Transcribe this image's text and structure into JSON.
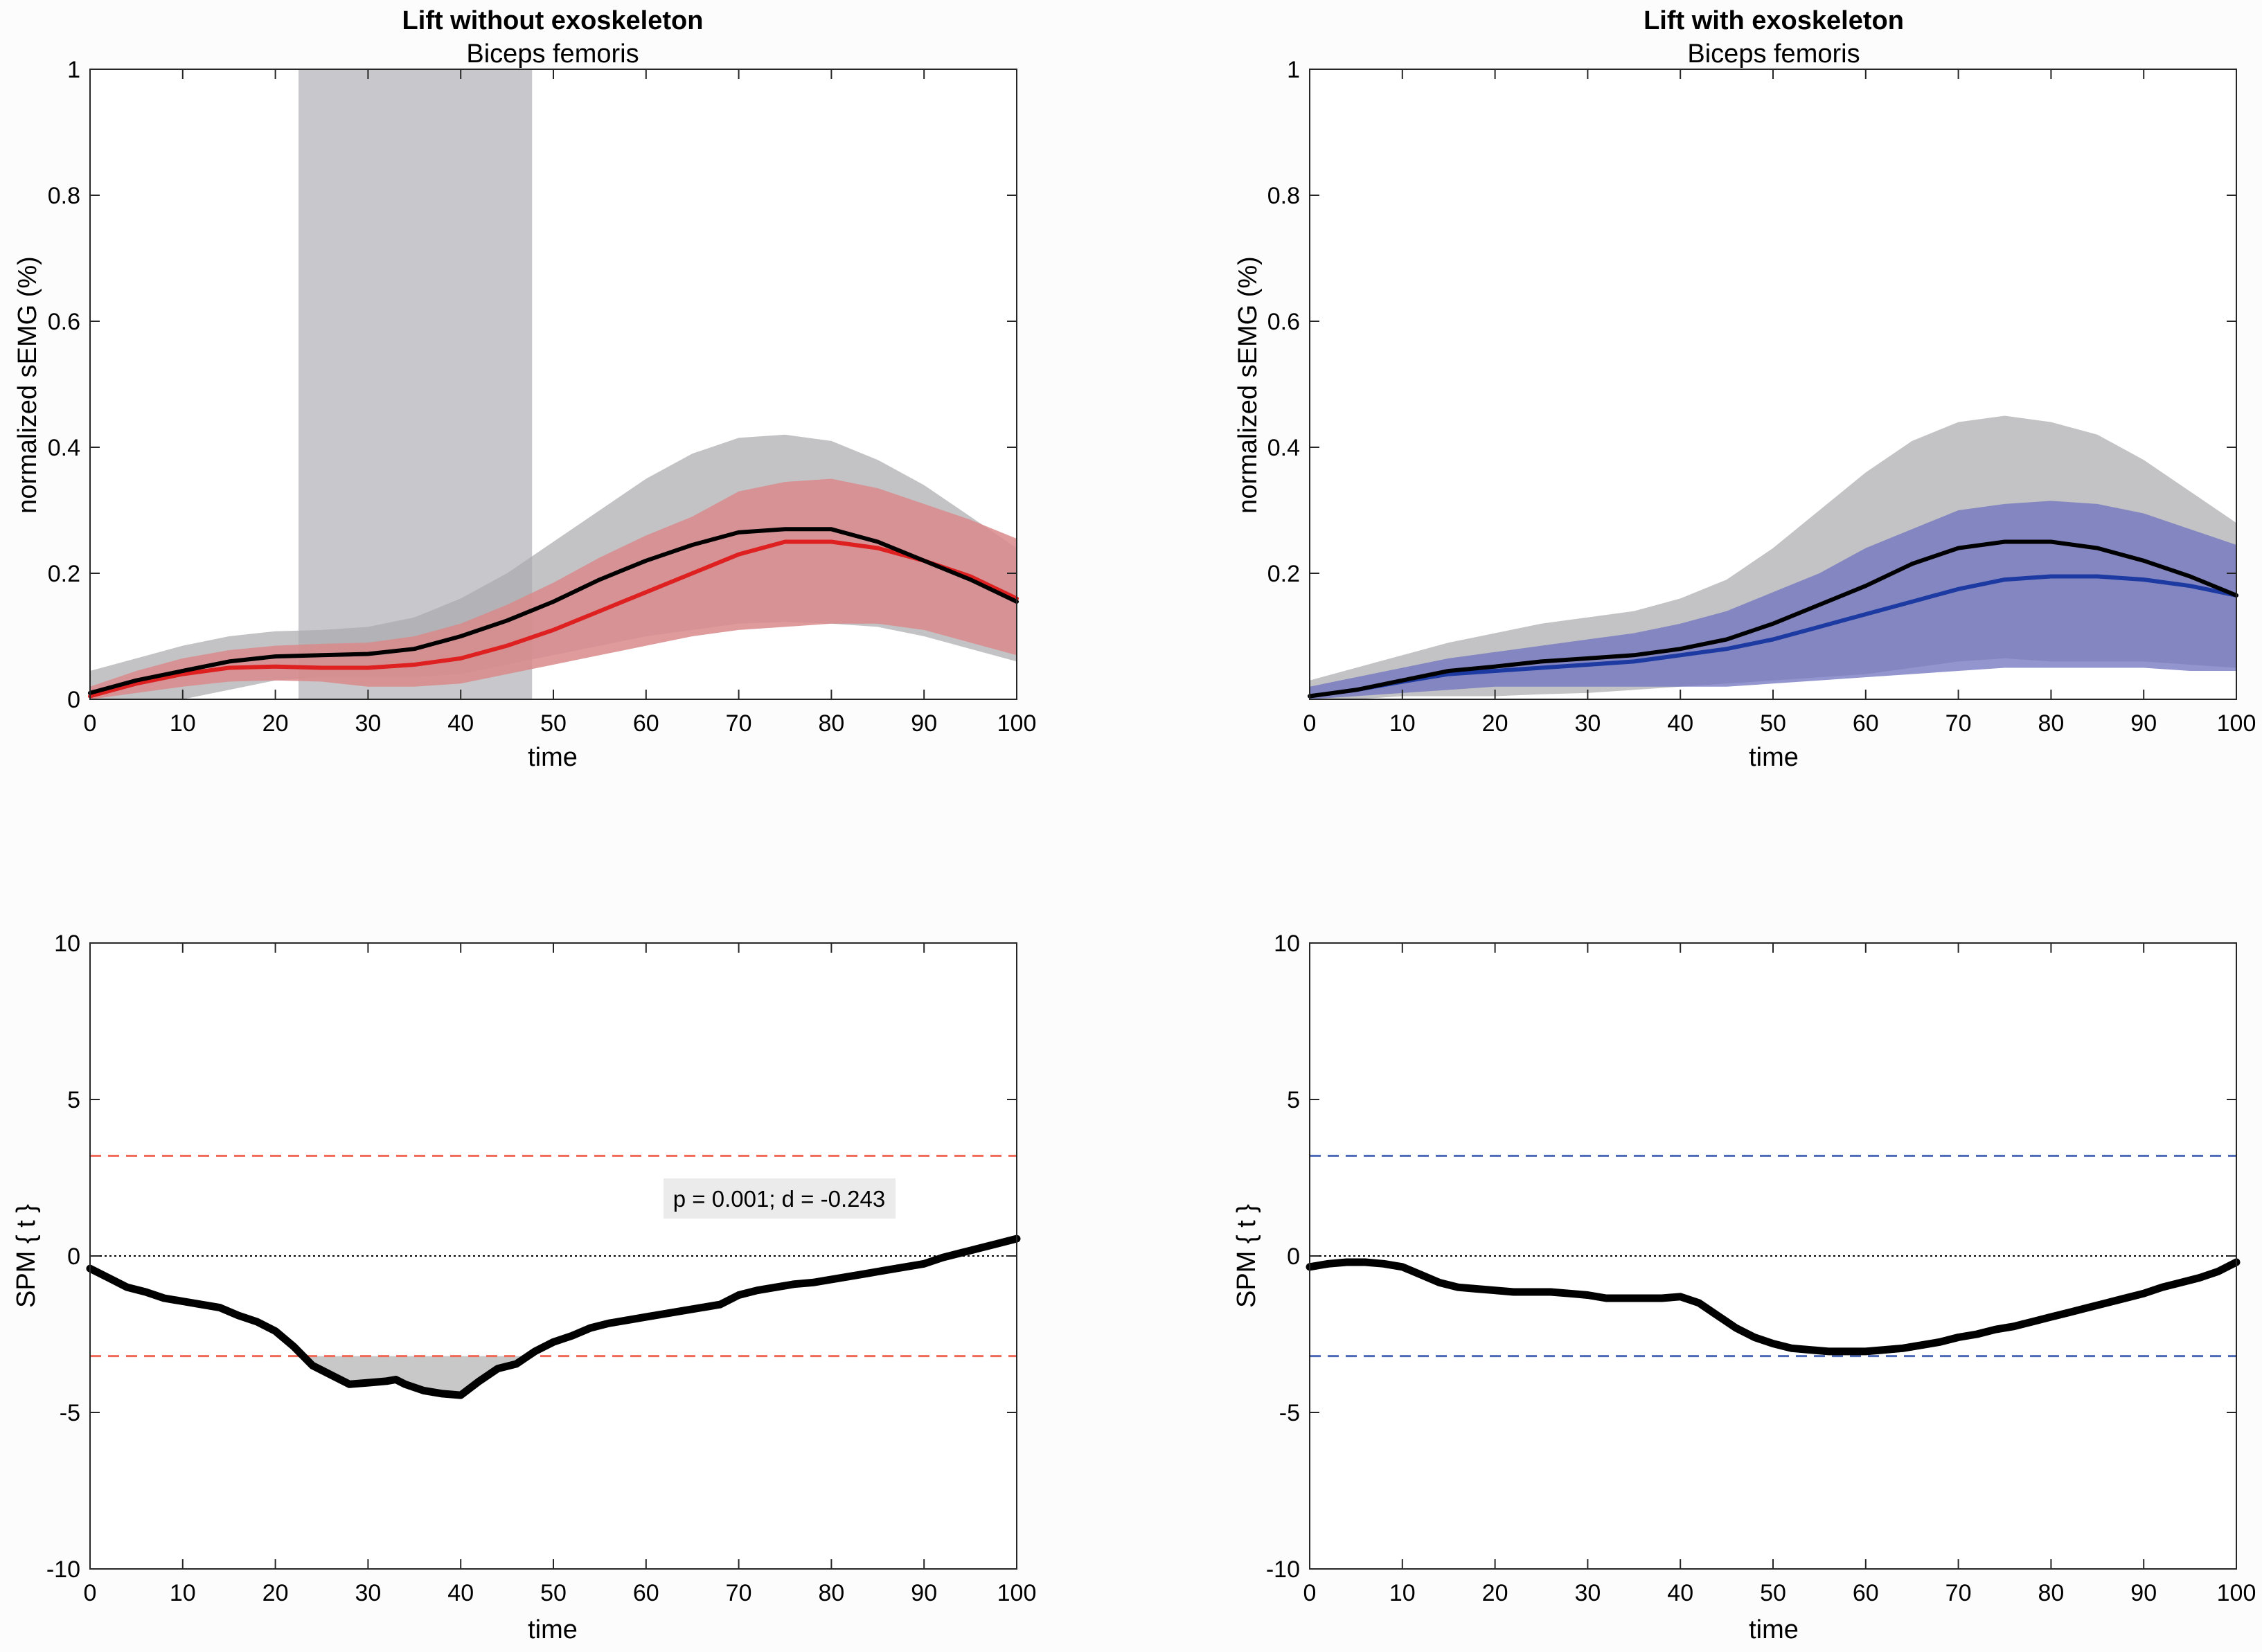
{
  "chart_data": [
    {
      "id": "tl",
      "type": "line",
      "title": "Lift without exoskeleton",
      "subtitle": "Biceps femoris",
      "xlabel": "time",
      "ylabel": "normalized sEMG (%)",
      "xlim": [
        0,
        100
      ],
      "ylim": [
        0,
        1
      ],
      "xticks": [
        "0",
        "10",
        "20",
        "30",
        "40",
        "50",
        "60",
        "70",
        "80",
        "90",
        "100"
      ],
      "yticks": [
        "0",
        "0.2",
        "0.4",
        "0.6",
        "0.8",
        "1"
      ],
      "ytick_values": [
        0,
        0.2,
        0.4,
        0.6,
        0.8,
        1
      ],
      "grid": false,
      "highlight": {
        "x_from": 22.5,
        "x_to": 47.7,
        "color": "#c8c7cb"
      },
      "bands": [
        {
          "name": "black SD band",
          "color": "#a9a9ad",
          "opacity": 0.7,
          "x": [
            0,
            5,
            10,
            15,
            20,
            25,
            30,
            35,
            40,
            45,
            50,
            55,
            60,
            65,
            70,
            75,
            80,
            85,
            90,
            95,
            100
          ],
          "upper": [
            0.045,
            0.065,
            0.085,
            0.1,
            0.108,
            0.11,
            0.115,
            0.13,
            0.16,
            0.2,
            0.25,
            0.3,
            0.35,
            0.39,
            0.415,
            0.42,
            0.41,
            0.38,
            0.34,
            0.29,
            0.24
          ],
          "lower": [
            0,
            0,
            0,
            0.015,
            0.03,
            0.035,
            0.035,
            0.035,
            0.04,
            0.055,
            0.07,
            0.085,
            0.1,
            0.11,
            0.12,
            0.123,
            0.12,
            0.115,
            0.1,
            0.08,
            0.06
          ]
        },
        {
          "name": "red SD band",
          "color": "#d98a8b",
          "opacity": 0.85,
          "x": [
            0,
            5,
            10,
            15,
            20,
            25,
            30,
            35,
            40,
            45,
            50,
            55,
            60,
            65,
            70,
            75,
            80,
            85,
            90,
            95,
            100
          ],
          "upper": [
            0.02,
            0.045,
            0.065,
            0.078,
            0.085,
            0.088,
            0.09,
            0.1,
            0.12,
            0.15,
            0.185,
            0.225,
            0.26,
            0.29,
            0.33,
            0.345,
            0.35,
            0.335,
            0.31,
            0.285,
            0.255
          ],
          "lower": [
            0,
            0.01,
            0.02,
            0.028,
            0.03,
            0.028,
            0.02,
            0.02,
            0.025,
            0.04,
            0.055,
            0.07,
            0.085,
            0.1,
            0.11,
            0.115,
            0.12,
            0.12,
            0.11,
            0.09,
            0.07
          ]
        }
      ],
      "series": [
        {
          "name": "red mean",
          "color": "#de2020",
          "width": 6,
          "x": [
            0,
            5,
            10,
            15,
            20,
            25,
            30,
            35,
            40,
            45,
            50,
            55,
            60,
            65,
            70,
            75,
            80,
            85,
            90,
            95,
            100
          ],
          "y": [
            0.005,
            0.025,
            0.04,
            0.05,
            0.052,
            0.05,
            0.05,
            0.055,
            0.065,
            0.085,
            0.11,
            0.14,
            0.17,
            0.2,
            0.23,
            0.25,
            0.25,
            0.24,
            0.22,
            0.195,
            0.16
          ]
        },
        {
          "name": "black mean",
          "color": "#000000",
          "width": 6,
          "x": [
            0,
            5,
            10,
            15,
            20,
            25,
            30,
            35,
            40,
            45,
            50,
            55,
            60,
            65,
            70,
            75,
            80,
            85,
            90,
            95,
            100
          ],
          "y": [
            0.01,
            0.03,
            0.045,
            0.06,
            0.068,
            0.07,
            0.072,
            0.08,
            0.1,
            0.125,
            0.155,
            0.19,
            0.22,
            0.245,
            0.265,
            0.27,
            0.27,
            0.25,
            0.22,
            0.19,
            0.155
          ]
        }
      ]
    },
    {
      "id": "tr",
      "type": "line",
      "title": "Lift with exoskeleton",
      "subtitle": "Biceps femoris",
      "xlabel": "time",
      "ylabel": "normalized sEMG (%)",
      "xlim": [
        0,
        100
      ],
      "ylim": [
        0,
        1
      ],
      "xticks": [
        "0",
        "10",
        "20",
        "30",
        "40",
        "50",
        "60",
        "70",
        "80",
        "90",
        "100"
      ],
      "yticks": [
        "0.2",
        "0.4",
        "0.6",
        "0.8",
        "1"
      ],
      "ytick_values": [
        0.2,
        0.4,
        0.6,
        0.8,
        1
      ],
      "grid": false,
      "bands": [
        {
          "name": "black SD band",
          "color": "#a9a9ad",
          "opacity": 0.7,
          "x": [
            0,
            5,
            10,
            15,
            20,
            25,
            30,
            35,
            40,
            45,
            50,
            55,
            60,
            65,
            70,
            75,
            80,
            85,
            90,
            95,
            100
          ],
          "upper": [
            0.03,
            0.05,
            0.07,
            0.09,
            0.105,
            0.12,
            0.13,
            0.14,
            0.16,
            0.19,
            0.24,
            0.3,
            0.36,
            0.41,
            0.44,
            0.45,
            0.44,
            0.42,
            0.38,
            0.33,
            0.28
          ],
          "lower": [
            0,
            0,
            0.005,
            0.005,
            0.005,
            0.008,
            0.01,
            0.015,
            0.02,
            0.025,
            0.03,
            0.035,
            0.04,
            0.05,
            0.06,
            0.065,
            0.06,
            0.06,
            0.06,
            0.055,
            0.05
          ]
        },
        {
          "name": "blue SD band",
          "color": "#6e72bd",
          "opacity": 0.75,
          "x": [
            0,
            5,
            10,
            15,
            20,
            25,
            30,
            35,
            40,
            45,
            50,
            55,
            60,
            65,
            70,
            75,
            80,
            85,
            90,
            95,
            100
          ],
          "upper": [
            0.02,
            0.035,
            0.05,
            0.065,
            0.075,
            0.085,
            0.095,
            0.105,
            0.12,
            0.14,
            0.17,
            0.2,
            0.24,
            0.27,
            0.3,
            0.31,
            0.315,
            0.31,
            0.295,
            0.27,
            0.245
          ],
          "lower": [
            0,
            0.005,
            0.01,
            0.015,
            0.02,
            0.02,
            0.02,
            0.02,
            0.02,
            0.02,
            0.025,
            0.03,
            0.035,
            0.04,
            0.045,
            0.05,
            0.05,
            0.05,
            0.05,
            0.045,
            0.045
          ]
        }
      ],
      "series": [
        {
          "name": "blue mean",
          "color": "#1c3aa1",
          "width": 6,
          "x": [
            0,
            5,
            10,
            15,
            20,
            25,
            30,
            35,
            40,
            45,
            50,
            55,
            60,
            65,
            70,
            75,
            80,
            85,
            90,
            95,
            100
          ],
          "y": [
            0.005,
            0.015,
            0.028,
            0.04,
            0.045,
            0.05,
            0.055,
            0.06,
            0.07,
            0.08,
            0.095,
            0.115,
            0.135,
            0.155,
            0.175,
            0.19,
            0.195,
            0.195,
            0.19,
            0.18,
            0.165
          ]
        },
        {
          "name": "black mean",
          "color": "#000000",
          "width": 6,
          "x": [
            0,
            5,
            10,
            15,
            20,
            25,
            30,
            35,
            40,
            45,
            50,
            55,
            60,
            65,
            70,
            75,
            80,
            85,
            90,
            95,
            100
          ],
          "y": [
            0.005,
            0.015,
            0.03,
            0.045,
            0.052,
            0.06,
            0.065,
            0.07,
            0.08,
            0.095,
            0.12,
            0.15,
            0.18,
            0.215,
            0.24,
            0.25,
            0.25,
            0.24,
            0.22,
            0.195,
            0.165
          ]
        }
      ]
    },
    {
      "id": "bl",
      "type": "line",
      "title": "",
      "xlabel": "time",
      "ylabel": "SPM { t }",
      "xlim": [
        0,
        100
      ],
      "ylim": [
        -10,
        10
      ],
      "xticks": [
        "0",
        "10",
        "20",
        "30",
        "40",
        "50",
        "60",
        "70",
        "80",
        "90",
        "100"
      ],
      "yticks": [
        "-10",
        "-5",
        "0",
        "5",
        "10"
      ],
      "ytick_values": [
        -10,
        -5,
        0,
        5,
        10
      ],
      "grid": false,
      "zero_line": true,
      "thresholds": {
        "values": [
          3.2,
          -3.2
        ],
        "color": "#f06a58"
      },
      "cluster_fill": {
        "color": "#c8c8c8",
        "threshold": -3.2,
        "x_from": 22,
        "x_to": 47
      },
      "annotation": {
        "text": "p = 0.001; d = -0.243",
        "x": 62.5,
        "y": 1.8
      },
      "series": [
        {
          "name": "SPM t",
          "color": "#000000",
          "width": 11,
          "x": [
            0,
            2,
            4,
            6,
            8,
            10,
            12,
            14,
            16,
            18,
            20,
            22,
            24,
            26,
            28,
            30,
            32,
            33,
            34,
            36,
            38,
            40,
            42,
            44,
            46,
            48,
            50,
            52,
            54,
            56,
            58,
            60,
            62,
            64,
            66,
            68,
            70,
            72,
            74,
            76,
            78,
            80,
            82,
            84,
            86,
            88,
            90,
            92,
            94,
            96,
            98,
            100
          ],
          "y": [
            -0.4,
            -0.7,
            -1.0,
            -1.15,
            -1.35,
            -1.45,
            -1.55,
            -1.65,
            -1.9,
            -2.1,
            -2.4,
            -2.9,
            -3.5,
            -3.8,
            -4.1,
            -4.05,
            -4.0,
            -3.95,
            -4.1,
            -4.3,
            -4.4,
            -4.45,
            -4.0,
            -3.6,
            -3.45,
            -3.05,
            -2.75,
            -2.55,
            -2.3,
            -2.15,
            -2.05,
            -1.95,
            -1.85,
            -1.75,
            -1.65,
            -1.55,
            -1.25,
            -1.1,
            -1.0,
            -0.9,
            -0.85,
            -0.75,
            -0.65,
            -0.55,
            -0.45,
            -0.35,
            -0.25,
            -0.05,
            0.1,
            0.25,
            0.4,
            0.55
          ]
        }
      ]
    },
    {
      "id": "br",
      "type": "line",
      "title": "",
      "xlabel": "time",
      "ylabel": "SPM { t }",
      "xlim": [
        0,
        100
      ],
      "ylim": [
        -10,
        10
      ],
      "xticks": [
        "0",
        "10",
        "20",
        "30",
        "40",
        "50",
        "60",
        "70",
        "80",
        "90",
        "100"
      ],
      "yticks": [
        "-10",
        "-5",
        "0",
        "5",
        "10"
      ],
      "ytick_values": [
        -10,
        -5,
        0,
        5,
        10
      ],
      "grid": false,
      "zero_line": true,
      "thresholds": {
        "values": [
          3.2,
          -3.2
        ],
        "color": "#4d6ab6"
      },
      "series": [
        {
          "name": "SPM t",
          "color": "#000000",
          "width": 11,
          "x": [
            0,
            2,
            4,
            6,
            8,
            10,
            12,
            14,
            16,
            18,
            20,
            22,
            24,
            26,
            28,
            30,
            32,
            34,
            36,
            38,
            40,
            42,
            44,
            46,
            48,
            50,
            52,
            54,
            56,
            58,
            60,
            62,
            64,
            66,
            68,
            70,
            72,
            74,
            76,
            78,
            80,
            82,
            84,
            86,
            88,
            90,
            92,
            94,
            96,
            98,
            100
          ],
          "y": [
            -0.35,
            -0.25,
            -0.2,
            -0.2,
            -0.25,
            -0.35,
            -0.6,
            -0.85,
            -1.0,
            -1.05,
            -1.1,
            -1.15,
            -1.15,
            -1.15,
            -1.2,
            -1.25,
            -1.35,
            -1.35,
            -1.35,
            -1.35,
            -1.3,
            -1.5,
            -1.9,
            -2.3,
            -2.6,
            -2.8,
            -2.95,
            -3.0,
            -3.05,
            -3.05,
            -3.05,
            -3.0,
            -2.95,
            -2.85,
            -2.75,
            -2.6,
            -2.5,
            -2.35,
            -2.25,
            -2.1,
            -1.95,
            -1.8,
            -1.65,
            -1.5,
            -1.35,
            -1.2,
            -1.0,
            -0.85,
            -0.7,
            -0.5,
            -0.2
          ]
        }
      ]
    }
  ]
}
